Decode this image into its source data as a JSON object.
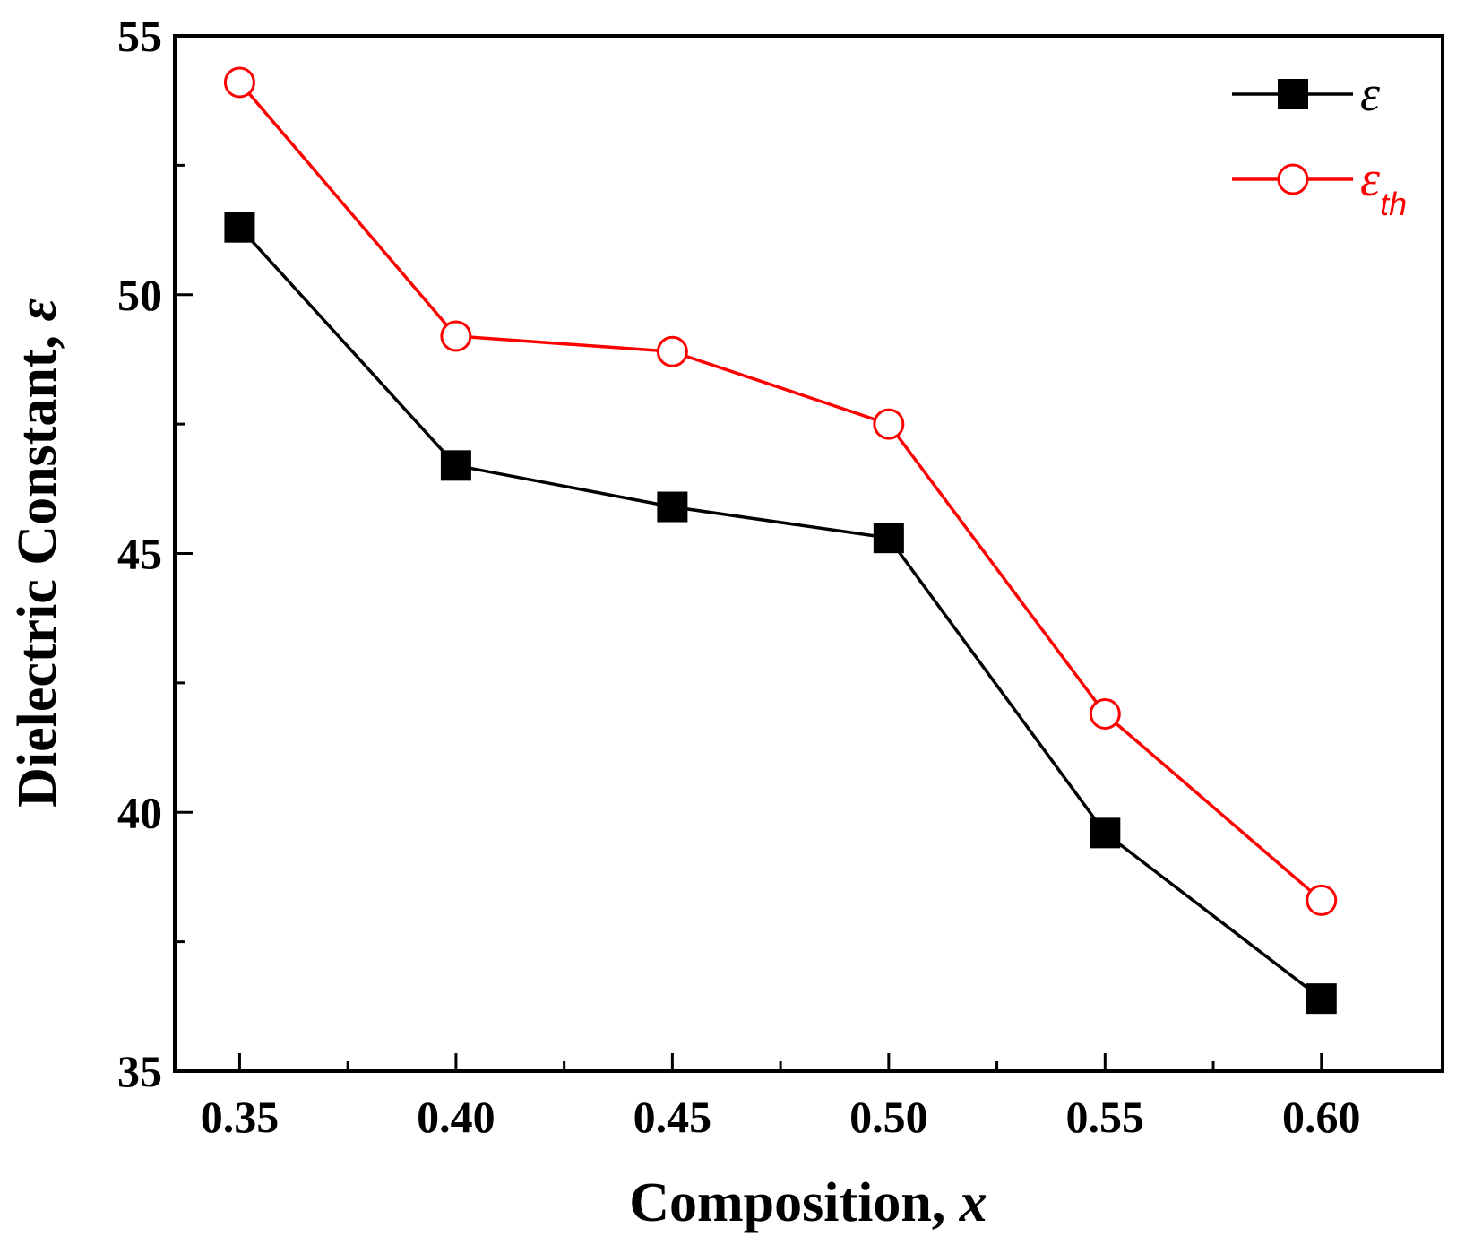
{
  "chart_data": {
    "type": "line",
    "title": "",
    "xlabel_main": "Composition, ",
    "xlabel_var": "x",
    "ylabel_main": "Dielectric Constant, ",
    "ylabel_var": "ε",
    "x": [
      0.35,
      0.4,
      0.45,
      0.5,
      0.55,
      0.6
    ],
    "x_tick_labels": [
      "0.35",
      "0.40",
      "0.45",
      "0.50",
      "0.55",
      "0.60"
    ],
    "xlim": [
      0.335,
      0.628
    ],
    "y_ticks": [
      35,
      40,
      45,
      50,
      55
    ],
    "y_tick_labels": [
      "35",
      "40",
      "45",
      "50",
      "55"
    ],
    "ylim": [
      35,
      55
    ],
    "legend_position": "top-right",
    "series": [
      {
        "name": "ε",
        "legend_symbol": "ε",
        "legend_sub": "",
        "color": "#000000",
        "marker": "filled-square",
        "values": [
          51.3,
          46.7,
          45.9,
          45.3,
          39.6,
          36.4
        ]
      },
      {
        "name": "εth",
        "legend_symbol": "ε",
        "legend_sub": "th",
        "color": "#ff0000",
        "marker": "open-circle",
        "values": [
          54.1,
          49.2,
          48.9,
          47.5,
          41.9,
          38.3
        ]
      }
    ]
  }
}
